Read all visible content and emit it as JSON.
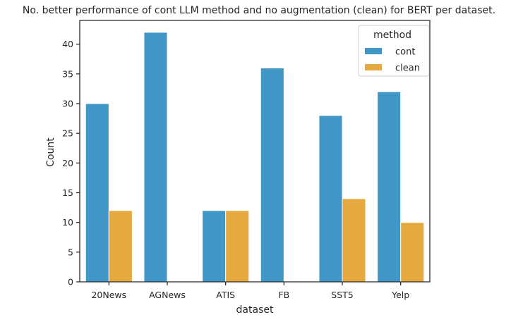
{
  "chart_data": {
    "type": "bar",
    "title": "No. better performance of cont LLM method and no augmentation (clean) for BERT per dataset.",
    "xlabel": "dataset",
    "ylabel": "Count",
    "categories": [
      "20News",
      "AGNews",
      "ATIS",
      "FB",
      "SST5",
      "Yelp"
    ],
    "series": [
      {
        "name": "cont",
        "values": [
          30,
          42,
          12,
          36,
          28,
          32
        ],
        "color": "#4196c8"
      },
      {
        "name": "clean",
        "values": [
          12,
          0,
          12,
          0,
          14,
          10
        ],
        "color": "#e5a93f"
      }
    ],
    "ylim": [
      0,
      44
    ],
    "yticks": [
      0,
      5,
      10,
      15,
      20,
      25,
      30,
      35,
      40
    ],
    "grid": false,
    "legend": {
      "title": "method",
      "placement": "top-right"
    }
  }
}
